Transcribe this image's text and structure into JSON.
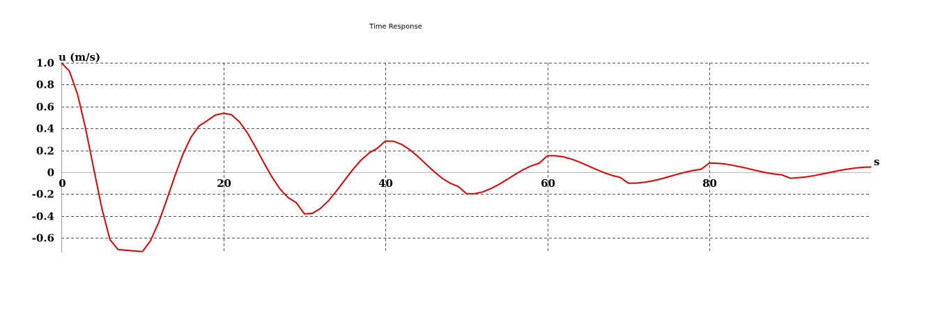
{
  "chart_data": {
    "type": "line",
    "title": "Time Response",
    "ylabel": "u (m/s)",
    "xlabel": "s",
    "xlim": [
      0,
      100
    ],
    "ylim": [
      -0.7,
      1.0
    ],
    "x_ticks": [
      "0",
      "20",
      "40",
      "60",
      "80"
    ],
    "y_ticks": [
      "1.0",
      "0.8",
      "0.6",
      "0.4",
      "0.2",
      "0",
      "-0.2",
      "-0.4",
      "-0.6"
    ],
    "grid": true,
    "series": [
      {
        "color": "#e00000",
        "x": [
          0,
          1,
          2,
          3,
          4,
          5,
          6,
          7,
          8,
          9,
          10,
          11,
          12,
          13,
          14,
          15,
          16,
          17,
          18,
          19,
          20,
          21,
          22,
          23,
          24,
          25,
          26,
          27,
          28,
          29,
          30,
          31,
          32,
          33,
          34,
          35,
          36,
          37,
          38,
          39,
          40,
          41,
          42,
          43,
          44,
          45,
          46,
          47,
          48,
          49,
          50,
          51,
          52,
          53,
          54,
          55,
          56,
          57,
          58,
          59,
          60,
          61,
          62,
          63,
          64,
          65,
          66,
          67,
          68,
          69,
          70,
          71,
          72,
          73,
          74,
          75,
          76,
          77,
          78,
          79,
          80,
          81,
          82,
          83,
          84,
          85,
          86,
          87,
          88,
          89,
          90,
          91,
          92,
          93,
          94,
          95,
          96,
          97,
          98,
          99,
          100
        ],
        "y": [
          1.0,
          0.924,
          0.712,
          0.398,
          0.032,
          -0.328,
          -0.615,
          -0.706,
          -0.713,
          -0.719,
          -0.725,
          -0.627,
          -0.461,
          -0.255,
          -0.037,
          0.163,
          0.32,
          0.422,
          0.471,
          0.522,
          0.538,
          0.526,
          0.459,
          0.356,
          0.226,
          0.088,
          -0.043,
          -0.153,
          -0.232,
          -0.277,
          -0.38,
          -0.375,
          -0.33,
          -0.259,
          -0.168,
          -0.07,
          0.026,
          0.11,
          0.176,
          0.218,
          0.285,
          0.283,
          0.255,
          0.207,
          0.145,
          0.076,
          0.007,
          -0.054,
          -0.1,
          -0.13,
          -0.195,
          -0.196,
          -0.18,
          -0.15,
          -0.112,
          -0.067,
          -0.021,
          0.022,
          0.058,
          0.083,
          0.15,
          0.15,
          0.14,
          0.12,
          0.092,
          0.06,
          0.027,
          -0.004,
          -0.029,
          -0.047,
          -0.1,
          -0.099,
          -0.092,
          -0.079,
          -0.061,
          -0.041,
          -0.02,
          0.0,
          0.016,
          0.028,
          0.085,
          0.082,
          0.075,
          0.062,
          0.047,
          0.03,
          0.012,
          -0.004,
          -0.016,
          -0.025,
          -0.055,
          -0.05,
          -0.042,
          -0.03,
          -0.015,
          0.0,
          0.015,
          0.028,
          0.038,
          0.045,
          0.048
        ]
      }
    ]
  }
}
